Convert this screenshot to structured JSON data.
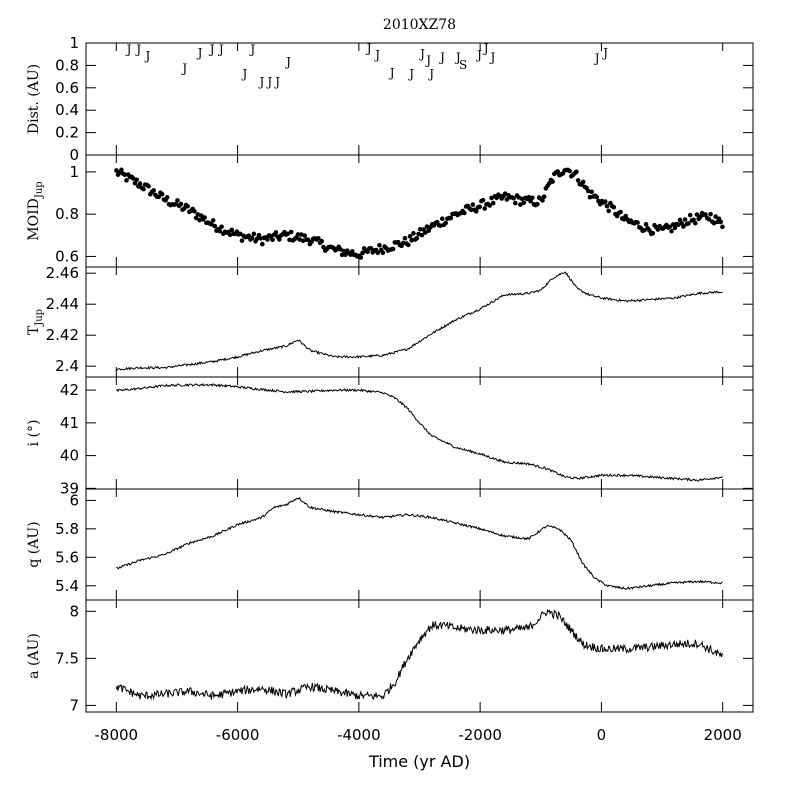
{
  "chart_data": [
    {
      "panel": "dist",
      "type": "scatter",
      "title": "2010XZ78",
      "ylabel": "Dist. (AU)",
      "ylim": [
        0,
        1
      ],
      "yticks": [
        "0",
        "0.2",
        "0.4",
        "0.6",
        "0.8",
        "1"
      ],
      "points": [
        {
          "x": -7790,
          "y": 0.96,
          "label": "J"
        },
        {
          "x": -7630,
          "y": 0.96,
          "label": "J"
        },
        {
          "x": -7480,
          "y": 0.9,
          "label": "J"
        },
        {
          "x": -6870,
          "y": 0.79,
          "label": "J"
        },
        {
          "x": -6620,
          "y": 0.93,
          "label": "J"
        },
        {
          "x": -6420,
          "y": 0.96,
          "label": "J"
        },
        {
          "x": -6270,
          "y": 0.96,
          "label": "J"
        },
        {
          "x": -5880,
          "y": 0.74,
          "label": "J"
        },
        {
          "x": -5750,
          "y": 0.96,
          "label": "J"
        },
        {
          "x": -5600,
          "y": 0.67,
          "label": "J"
        },
        {
          "x": -5470,
          "y": 0.67,
          "label": "J"
        },
        {
          "x": -5340,
          "y": 0.67,
          "label": "J"
        },
        {
          "x": -5160,
          "y": 0.85,
          "label": "J"
        },
        {
          "x": -3830,
          "y": 0.97,
          "label": "J"
        },
        {
          "x": -3690,
          "y": 0.91,
          "label": "J"
        },
        {
          "x": -3450,
          "y": 0.75,
          "label": "J"
        },
        {
          "x": -3130,
          "y": 0.74,
          "label": "J"
        },
        {
          "x": -2950,
          "y": 0.92,
          "label": "J"
        },
        {
          "x": -2850,
          "y": 0.86,
          "label": "J"
        },
        {
          "x": -2800,
          "y": 0.74,
          "label": "J"
        },
        {
          "x": -2620,
          "y": 0.89,
          "label": "J"
        },
        {
          "x": -2360,
          "y": 0.89,
          "label": "J"
        },
        {
          "x": -2280,
          "y": 0.82,
          "label": "S"
        },
        {
          "x": -2010,
          "y": 0.91,
          "label": "J"
        },
        {
          "x": -1900,
          "y": 0.97,
          "label": "J"
        },
        {
          "x": -1790,
          "y": 0.89,
          "label": "J"
        },
        {
          "x": -70,
          "y": 0.88,
          "label": "J"
        },
        {
          "x": 70,
          "y": 0.93,
          "label": "J"
        }
      ]
    },
    {
      "panel": "moid",
      "type": "scatter",
      "ylabel": "MOID",
      "ylabel_sub": "Jup",
      "ylim": [
        0.55,
        1.08
      ],
      "yticks": [
        "0.6",
        "0.8",
        "1"
      ],
      "x": [
        -8000,
        -7600,
        -7200,
        -6800,
        -6400,
        -6000,
        -5600,
        -5200,
        -4800,
        -4400,
        -4000,
        -3600,
        -3200,
        -2800,
        -2400,
        -2000,
        -1600,
        -1200,
        -1000,
        -800,
        -600,
        -400,
        -200,
        0,
        200,
        400,
        600,
        800,
        1000,
        1200,
        1400,
        1600,
        1800,
        2000
      ],
      "y": [
        1.0,
        0.94,
        0.87,
        0.82,
        0.75,
        0.7,
        0.68,
        0.7,
        0.68,
        0.63,
        0.61,
        0.64,
        0.67,
        0.74,
        0.8,
        0.84,
        0.88,
        0.86,
        0.86,
        0.97,
        1.02,
        0.98,
        0.9,
        0.86,
        0.82,
        0.77,
        0.75,
        0.73,
        0.72,
        0.74,
        0.77,
        0.78,
        0.79,
        0.75
      ]
    },
    {
      "panel": "tjup",
      "type": "line",
      "ylabel": "T",
      "ylabel_sub": "Jup",
      "ylim": [
        2.393,
        2.464
      ],
      "yticks": [
        "2.4",
        "2.42",
        "2.44",
        "2.46"
      ],
      "x": [
        -8000,
        -7600,
        -7200,
        -6800,
        -6400,
        -6000,
        -5600,
        -5200,
        -5000,
        -4800,
        -4400,
        -4000,
        -3600,
        -3200,
        -2800,
        -2400,
        -2000,
        -1600,
        -1200,
        -1000,
        -800,
        -600,
        -400,
        -200,
        0,
        400,
        800,
        1200,
        1600,
        2000
      ],
      "y": [
        2.398,
        2.399,
        2.399,
        2.401,
        2.403,
        2.406,
        2.41,
        2.413,
        2.417,
        2.41,
        2.406,
        2.406,
        2.407,
        2.411,
        2.421,
        2.43,
        2.437,
        2.446,
        2.447,
        2.449,
        2.457,
        2.461,
        2.45,
        2.446,
        2.444,
        2.442,
        2.443,
        2.444,
        2.447,
        2.448
      ]
    },
    {
      "panel": "incl",
      "type": "line",
      "ylabel": "i (°)",
      "ylim": [
        38.98,
        42.4
      ],
      "yticks": [
        "39",
        "40",
        "41",
        "42"
      ],
      "x": [
        -8000,
        -7600,
        -7200,
        -6800,
        -6400,
        -6000,
        -5600,
        -5200,
        -4800,
        -4400,
        -4000,
        -3600,
        -3400,
        -3200,
        -3000,
        -2800,
        -2400,
        -2000,
        -1600,
        -1200,
        -900,
        -600,
        -400,
        0,
        400,
        800,
        1200,
        1600,
        2000
      ],
      "y": [
        41.98,
        42.05,
        42.14,
        42.16,
        42.16,
        42.1,
        42.02,
        41.95,
        41.96,
        42.0,
        42.0,
        41.92,
        41.75,
        41.45,
        41.0,
        40.6,
        40.25,
        40.05,
        39.8,
        39.75,
        39.6,
        39.35,
        39.3,
        39.4,
        39.4,
        39.35,
        39.3,
        39.25,
        39.35
      ]
    },
    {
      "panel": "q",
      "type": "line",
      "ylabel": "q (AU)",
      "ylim": [
        5.3,
        6.08
      ],
      "yticks": [
        "5.4",
        "5.6",
        "5.8",
        "6"
      ],
      "x": [
        -8000,
        -7600,
        -7200,
        -6800,
        -6400,
        -6000,
        -5600,
        -5400,
        -5200,
        -5000,
        -4800,
        -4400,
        -4000,
        -3600,
        -3200,
        -2800,
        -2400,
        -2000,
        -1600,
        -1200,
        -900,
        -700,
        -500,
        -300,
        -100,
        100,
        400,
        800,
        1200,
        1600,
        2000
      ],
      "y": [
        5.52,
        5.58,
        5.62,
        5.7,
        5.75,
        5.83,
        5.88,
        5.95,
        5.97,
        6.02,
        5.95,
        5.92,
        5.9,
        5.88,
        5.9,
        5.88,
        5.84,
        5.8,
        5.75,
        5.73,
        5.82,
        5.8,
        5.72,
        5.55,
        5.45,
        5.4,
        5.38,
        5.4,
        5.42,
        5.43,
        5.42
      ]
    },
    {
      "panel": "a",
      "type": "line",
      "ylabel": "a (AU)",
      "ylim": [
        6.93,
        8.12
      ],
      "yticks": [
        "7",
        "7.5",
        "8"
      ],
      "xlabel": "Time (yr AD)",
      "xlim": [
        -8500,
        2500
      ],
      "xticks": [
        "-8000",
        "-6000",
        "-4000",
        "-2000",
        "0",
        "2000"
      ],
      "x": [
        -8000,
        -7600,
        -7200,
        -6800,
        -6400,
        -6000,
        -5600,
        -5200,
        -4800,
        -4400,
        -4000,
        -3600,
        -3400,
        -3200,
        -3000,
        -2800,
        -2600,
        -2400,
        -2000,
        -1600,
        -1200,
        -900,
        -700,
        -500,
        -300,
        0,
        400,
        800,
        1200,
        1600,
        2000
      ],
      "y": [
        7.2,
        7.1,
        7.12,
        7.15,
        7.1,
        7.15,
        7.18,
        7.12,
        7.2,
        7.15,
        7.1,
        7.1,
        7.25,
        7.5,
        7.7,
        7.85,
        7.85,
        7.82,
        7.8,
        7.8,
        7.82,
        8.0,
        7.95,
        7.8,
        7.65,
        7.6,
        7.6,
        7.62,
        7.65,
        7.66,
        7.52
      ]
    }
  ]
}
